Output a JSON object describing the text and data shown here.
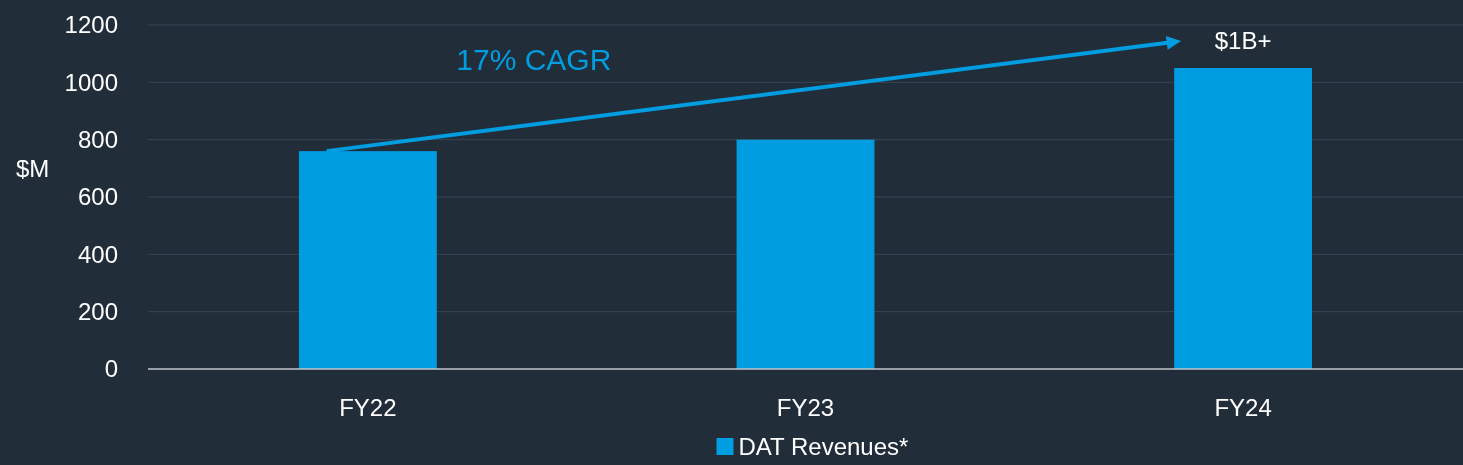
{
  "chart_data": {
    "type": "bar",
    "ylabel": "$M",
    "categories": [
      "FY22",
      "FY23",
      "FY24"
    ],
    "series": [
      {
        "name": "DAT Revenues*",
        "color": "#009de0",
        "values": [
          760,
          800,
          1050
        ]
      }
    ],
    "ylim": [
      0,
      1200
    ],
    "yticks": [
      0,
      200,
      400,
      600,
      800,
      1000,
      1200
    ],
    "grid": "y",
    "legend": "bottom",
    "annotations": [
      "17% CAGR",
      "$1B+"
    ]
  }
}
